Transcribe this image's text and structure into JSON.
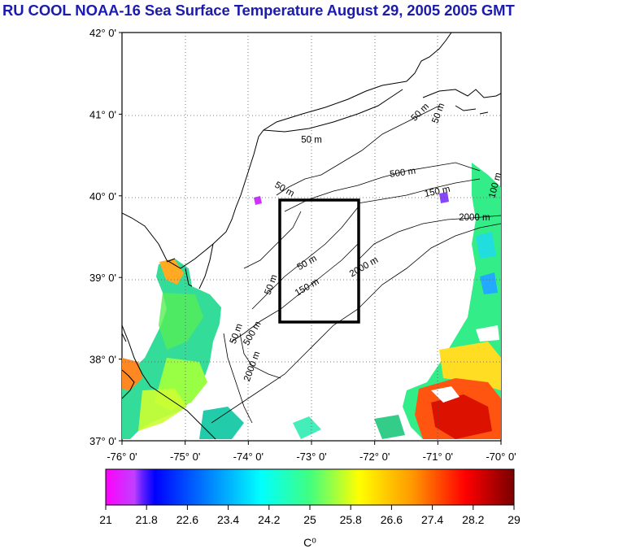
{
  "title": "RU COOL  NOAA-16 Sea Surface Temperature August 29, 2005 2005 GMT",
  "map": {
    "lat_labels": [
      "42° 0'",
      "41° 0'",
      "40° 0'",
      "39° 0'",
      "38° 0'",
      "37° 0'"
    ],
    "lon_labels": [
      "-76° 0'",
      "-75° 0'",
      "-74° 0'",
      "-73° 0'",
      "-72° 0'",
      "-71° 0'",
      "-70° 0'"
    ],
    "lat_range": [
      37,
      42
    ],
    "lon_range": [
      -76,
      -70
    ],
    "study_box": {
      "lon": [
        -73.5,
        -72.3
      ],
      "lat": [
        38.5,
        40.0
      ]
    },
    "contour_labels": [
      {
        "text": "50 m",
        "lon": -73.0,
        "lat": 40.65,
        "rot": 0
      },
      {
        "text": "50 m",
        "lon": -71.25,
        "lat": 41.0,
        "rot": -45
      },
      {
        "text": "50 m",
        "lon": -70.95,
        "lat": 41.0,
        "rot": -70
      },
      {
        "text": "500 m",
        "lon": -71.55,
        "lat": 40.25,
        "rot": -8
      },
      {
        "text": "150 m",
        "lon": -71.0,
        "lat": 40.02,
        "rot": -12
      },
      {
        "text": "100 m",
        "lon": -70.05,
        "lat": 40.12,
        "rot": -75
      },
      {
        "text": "2000 m",
        "lon": -70.42,
        "lat": 39.7,
        "rot": 0
      },
      {
        "text": "50 m",
        "lon": -73.45,
        "lat": 40.05,
        "rot": 30
      },
      {
        "text": "50 m",
        "lon": -73.05,
        "lat": 39.15,
        "rot": -30
      },
      {
        "text": "150 m",
        "lon": -73.05,
        "lat": 38.85,
        "rot": -30
      },
      {
        "text": "2000 m",
        "lon": -72.15,
        "lat": 39.1,
        "rot": -30
      },
      {
        "text": "50 m",
        "lon": -73.6,
        "lat": 38.9,
        "rot": -70
      },
      {
        "text": "50 m",
        "lon": -74.15,
        "lat": 38.3,
        "rot": -70
      },
      {
        "text": "500 m",
        "lon": -73.9,
        "lat": 38.3,
        "rot": -60
      },
      {
        "text": "2000 m",
        "lon": -73.9,
        "lat": 37.9,
        "rot": -70
      }
    ],
    "colors": {
      "land_outline": "#000000",
      "grid": "#555555"
    }
  },
  "colorbar": {
    "unit_label": "C⁰",
    "min": 21,
    "max": 29,
    "tick_labels": [
      "21",
      "21.8",
      "22.6",
      "23.4",
      "24.2",
      "25",
      "25.8",
      "26.6",
      "27.4",
      "28.2",
      "29"
    ],
    "stops": [
      "#ff00ff",
      "#0000ff",
      "#0099ff",
      "#00ffff",
      "#66ff66",
      "#ffff00",
      "#ff8800",
      "#ff0000",
      "#7a0000"
    ]
  }
}
